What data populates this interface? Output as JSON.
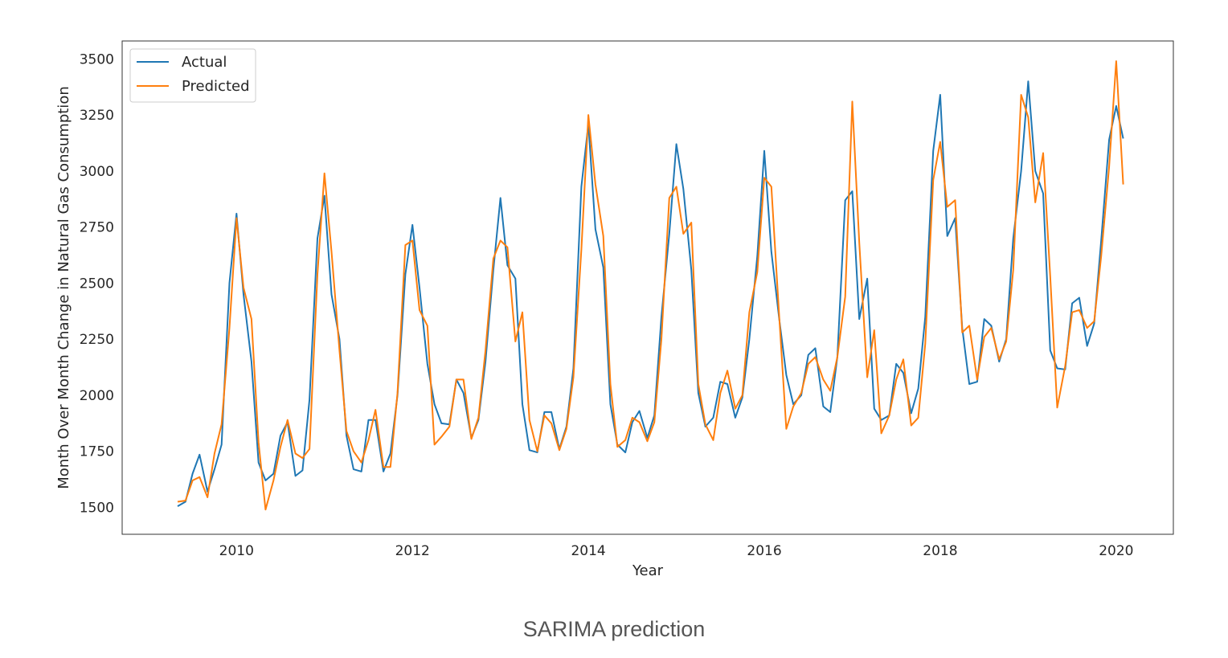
{
  "caption": "SARIMA prediction",
  "chart_data": {
    "type": "line",
    "xlabel": "Year",
    "ylabel": "Month Over Month Change in Natural Gas Consumption",
    "xlim": [
      2008.7,
      2020.65
    ],
    "ylim": [
      1380,
      3580
    ],
    "xticks": [
      2010,
      2012,
      2014,
      2016,
      2018,
      2020
    ],
    "yticks": [
      1500,
      1750,
      2000,
      2250,
      2500,
      2750,
      3000,
      3250,
      3500
    ],
    "grid": false,
    "legend_position": "top-left",
    "colors": {
      "Actual": "#1f77b4",
      "Predicted": "#ff7f0e"
    },
    "series": [
      {
        "name": "Actual",
        "points": [
          [
            2009.33,
            1505
          ],
          [
            2009.42,
            1525
          ],
          [
            2009.5,
            1650
          ],
          [
            2009.58,
            1735
          ],
          [
            2009.67,
            1570
          ],
          [
            2009.75,
            1670
          ],
          [
            2009.83,
            1780
          ],
          [
            2009.92,
            2500
          ],
          [
            2010.0,
            2810
          ],
          [
            2010.08,
            2450
          ],
          [
            2010.17,
            2150
          ],
          [
            2010.25,
            1700
          ],
          [
            2010.33,
            1620
          ],
          [
            2010.42,
            1650
          ],
          [
            2010.5,
            1820
          ],
          [
            2010.58,
            1880
          ],
          [
            2010.67,
            1640
          ],
          [
            2010.75,
            1665
          ],
          [
            2010.83,
            1980
          ],
          [
            2010.92,
            2700
          ],
          [
            2011.0,
            2890
          ],
          [
            2011.08,
            2450
          ],
          [
            2011.17,
            2250
          ],
          [
            2011.25,
            1820
          ],
          [
            2011.33,
            1670
          ],
          [
            2011.42,
            1660
          ],
          [
            2011.5,
            1890
          ],
          [
            2011.58,
            1890
          ],
          [
            2011.67,
            1660
          ],
          [
            2011.75,
            1740
          ],
          [
            2011.83,
            2000
          ],
          [
            2011.92,
            2540
          ],
          [
            2012.0,
            2760
          ],
          [
            2012.08,
            2480
          ],
          [
            2012.17,
            2140
          ],
          [
            2012.25,
            1960
          ],
          [
            2012.33,
            1875
          ],
          [
            2012.42,
            1870
          ],
          [
            2012.5,
            2070
          ],
          [
            2012.58,
            2010
          ],
          [
            2012.67,
            1810
          ],
          [
            2012.75,
            1890
          ],
          [
            2012.83,
            2150
          ],
          [
            2012.92,
            2560
          ],
          [
            2013.0,
            2880
          ],
          [
            2013.08,
            2580
          ],
          [
            2013.17,
            2520
          ],
          [
            2013.25,
            1960
          ],
          [
            2013.33,
            1755
          ],
          [
            2013.42,
            1745
          ],
          [
            2013.5,
            1925
          ],
          [
            2013.58,
            1925
          ],
          [
            2013.67,
            1760
          ],
          [
            2013.75,
            1860
          ],
          [
            2013.83,
            2120
          ],
          [
            2013.92,
            2930
          ],
          [
            2014.0,
            3210
          ],
          [
            2014.08,
            2740
          ],
          [
            2014.17,
            2570
          ],
          [
            2014.25,
            1960
          ],
          [
            2014.33,
            1780
          ],
          [
            2014.42,
            1745
          ],
          [
            2014.5,
            1880
          ],
          [
            2014.58,
            1930
          ],
          [
            2014.67,
            1810
          ],
          [
            2014.75,
            1910
          ],
          [
            2014.83,
            2350
          ],
          [
            2014.92,
            2720
          ],
          [
            2015.0,
            3120
          ],
          [
            2015.08,
            2920
          ],
          [
            2015.17,
            2560
          ],
          [
            2015.25,
            2010
          ],
          [
            2015.33,
            1860
          ],
          [
            2015.42,
            1900
          ],
          [
            2015.5,
            2060
          ],
          [
            2015.58,
            2050
          ],
          [
            2015.67,
            1900
          ],
          [
            2015.75,
            1990
          ],
          [
            2015.83,
            2250
          ],
          [
            2015.92,
            2620
          ],
          [
            2016.0,
            3090
          ],
          [
            2016.08,
            2640
          ],
          [
            2016.17,
            2340
          ],
          [
            2016.25,
            2090
          ],
          [
            2016.33,
            1960
          ],
          [
            2016.42,
            2000
          ],
          [
            2016.5,
            2180
          ],
          [
            2016.58,
            2210
          ],
          [
            2016.67,
            1950
          ],
          [
            2016.75,
            1925
          ],
          [
            2016.83,
            2170
          ],
          [
            2016.92,
            2870
          ],
          [
            2017.0,
            2910
          ],
          [
            2017.08,
            2340
          ],
          [
            2017.17,
            2520
          ],
          [
            2017.25,
            1940
          ],
          [
            2017.33,
            1890
          ],
          [
            2017.42,
            1910
          ],
          [
            2017.5,
            2140
          ],
          [
            2017.58,
            2100
          ],
          [
            2017.67,
            1920
          ],
          [
            2017.75,
            2030
          ],
          [
            2017.83,
            2350
          ],
          [
            2017.92,
            3090
          ],
          [
            2018.0,
            3340
          ],
          [
            2018.08,
            2710
          ],
          [
            2018.17,
            2790
          ],
          [
            2018.25,
            2300
          ],
          [
            2018.33,
            2050
          ],
          [
            2018.42,
            2060
          ],
          [
            2018.5,
            2340
          ],
          [
            2018.58,
            2310
          ],
          [
            2018.67,
            2150
          ],
          [
            2018.75,
            2250
          ],
          [
            2018.83,
            2700
          ],
          [
            2018.92,
            3000
          ],
          [
            2019.0,
            3400
          ],
          [
            2019.08,
            3000
          ],
          [
            2019.17,
            2900
          ],
          [
            2019.25,
            2200
          ],
          [
            2019.33,
            2120
          ],
          [
            2019.42,
            2115
          ],
          [
            2019.5,
            2410
          ],
          [
            2019.58,
            2435
          ],
          [
            2019.67,
            2220
          ],
          [
            2019.75,
            2320
          ],
          [
            2019.83,
            2690
          ],
          [
            2019.92,
            3140
          ],
          [
            2020.0,
            3290
          ],
          [
            2020.08,
            3145
          ]
        ]
      },
      {
        "name": "Predicted",
        "points": [
          [
            2009.33,
            1525
          ],
          [
            2009.42,
            1530
          ],
          [
            2009.5,
            1620
          ],
          [
            2009.58,
            1635
          ],
          [
            2009.67,
            1545
          ],
          [
            2009.75,
            1740
          ],
          [
            2009.83,
            1870
          ],
          [
            2009.92,
            2300
          ],
          [
            2010.0,
            2790
          ],
          [
            2010.08,
            2480
          ],
          [
            2010.17,
            2340
          ],
          [
            2010.25,
            1790
          ],
          [
            2010.33,
            1490
          ],
          [
            2010.42,
            1620
          ],
          [
            2010.5,
            1770
          ],
          [
            2010.58,
            1890
          ],
          [
            2010.67,
            1740
          ],
          [
            2010.75,
            1720
          ],
          [
            2010.83,
            1760
          ],
          [
            2010.92,
            2540
          ],
          [
            2011.0,
            2990
          ],
          [
            2011.08,
            2640
          ],
          [
            2011.17,
            2200
          ],
          [
            2011.25,
            1840
          ],
          [
            2011.33,
            1750
          ],
          [
            2011.42,
            1700
          ],
          [
            2011.5,
            1800
          ],
          [
            2011.58,
            1935
          ],
          [
            2011.67,
            1680
          ],
          [
            2011.75,
            1680
          ],
          [
            2011.83,
            2010
          ],
          [
            2011.92,
            2670
          ],
          [
            2012.0,
            2690
          ],
          [
            2012.08,
            2380
          ],
          [
            2012.17,
            2310
          ],
          [
            2012.25,
            1780
          ],
          [
            2012.33,
            1815
          ],
          [
            2012.42,
            1860
          ],
          [
            2012.5,
            2070
          ],
          [
            2012.58,
            2070
          ],
          [
            2012.67,
            1805
          ],
          [
            2012.75,
            1900
          ],
          [
            2012.83,
            2200
          ],
          [
            2012.92,
            2610
          ],
          [
            2013.0,
            2690
          ],
          [
            2013.08,
            2660
          ],
          [
            2013.17,
            2240
          ],
          [
            2013.25,
            2370
          ],
          [
            2013.33,
            1890
          ],
          [
            2013.42,
            1750
          ],
          [
            2013.5,
            1910
          ],
          [
            2013.58,
            1875
          ],
          [
            2013.67,
            1755
          ],
          [
            2013.75,
            1850
          ],
          [
            2013.83,
            2080
          ],
          [
            2013.92,
            2650
          ],
          [
            2014.0,
            3250
          ],
          [
            2014.08,
            2940
          ],
          [
            2014.17,
            2710
          ],
          [
            2014.25,
            2050
          ],
          [
            2014.33,
            1770
          ],
          [
            2014.42,
            1800
          ],
          [
            2014.5,
            1900
          ],
          [
            2014.58,
            1880
          ],
          [
            2014.67,
            1795
          ],
          [
            2014.75,
            1880
          ],
          [
            2014.83,
            2250
          ],
          [
            2014.92,
            2880
          ],
          [
            2015.0,
            2930
          ],
          [
            2015.08,
            2720
          ],
          [
            2015.17,
            2770
          ],
          [
            2015.25,
            2050
          ],
          [
            2015.33,
            1870
          ],
          [
            2015.42,
            1800
          ],
          [
            2015.5,
            2010
          ],
          [
            2015.58,
            2110
          ],
          [
            2015.67,
            1940
          ],
          [
            2015.75,
            2000
          ],
          [
            2015.83,
            2370
          ],
          [
            2015.92,
            2550
          ],
          [
            2016.0,
            2970
          ],
          [
            2016.08,
            2930
          ],
          [
            2016.17,
            2350
          ],
          [
            2016.25,
            1850
          ],
          [
            2016.33,
            1950
          ],
          [
            2016.42,
            2010
          ],
          [
            2016.5,
            2140
          ],
          [
            2016.58,
            2170
          ],
          [
            2016.67,
            2070
          ],
          [
            2016.75,
            2020
          ],
          [
            2016.83,
            2170
          ],
          [
            2016.92,
            2440
          ],
          [
            2017.0,
            3310
          ],
          [
            2017.08,
            2680
          ],
          [
            2017.17,
            2080
          ],
          [
            2017.25,
            2290
          ],
          [
            2017.33,
            1830
          ],
          [
            2017.42,
            1910
          ],
          [
            2017.5,
            2070
          ],
          [
            2017.58,
            2160
          ],
          [
            2017.67,
            1865
          ],
          [
            2017.75,
            1900
          ],
          [
            2017.83,
            2230
          ],
          [
            2017.92,
            2960
          ],
          [
            2018.0,
            3130
          ],
          [
            2018.08,
            2840
          ],
          [
            2018.17,
            2870
          ],
          [
            2018.25,
            2280
          ],
          [
            2018.33,
            2310
          ],
          [
            2018.42,
            2070
          ],
          [
            2018.5,
            2260
          ],
          [
            2018.58,
            2300
          ],
          [
            2018.67,
            2160
          ],
          [
            2018.75,
            2240
          ],
          [
            2018.83,
            2560
          ],
          [
            2018.92,
            3340
          ],
          [
            2019.0,
            3240
          ],
          [
            2019.08,
            2860
          ],
          [
            2019.17,
            3080
          ],
          [
            2019.25,
            2530
          ],
          [
            2019.33,
            1945
          ],
          [
            2019.42,
            2130
          ],
          [
            2019.5,
            2370
          ],
          [
            2019.58,
            2380
          ],
          [
            2019.67,
            2300
          ],
          [
            2019.75,
            2330
          ],
          [
            2019.83,
            2620
          ],
          [
            2019.92,
            3020
          ],
          [
            2020.0,
            3490
          ],
          [
            2020.08,
            2940
          ]
        ]
      }
    ]
  }
}
